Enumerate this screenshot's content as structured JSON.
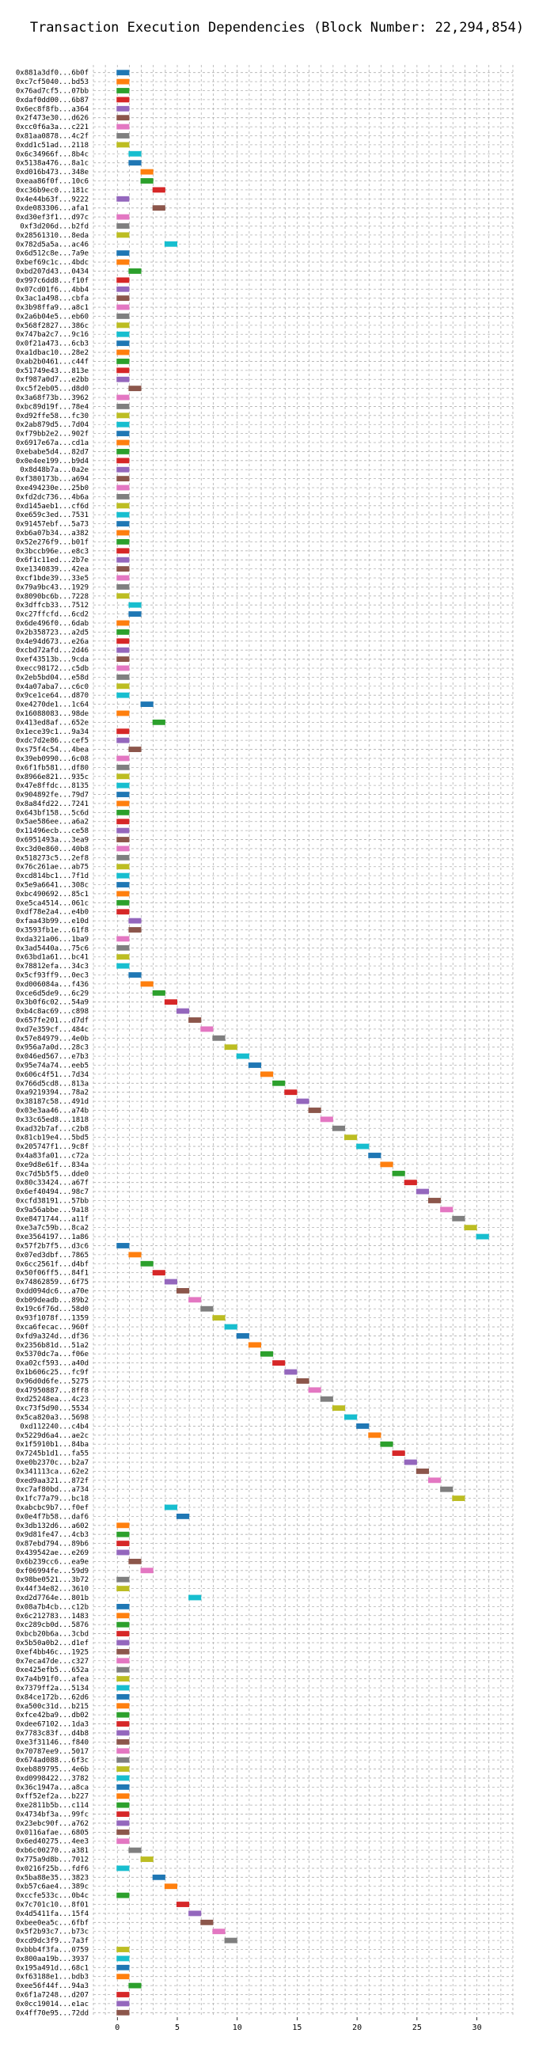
{
  "chart_data": {
    "type": "bar",
    "orientation": "horizontal",
    "title": "Transaction Execution Dependencies (Block Number: 22,294,854)",
    "xlabel": "",
    "ylabel": "",
    "xlim": [
      -2,
      33
    ],
    "xticks": [
      0,
      5,
      10,
      15,
      20,
      25,
      30
    ],
    "grid": true,
    "palette": [
      "#1f77b4",
      "#ff7f0e",
      "#2ca02c",
      "#d62728",
      "#9467bd",
      "#8c564b",
      "#e377c2",
      "#7f7f7f",
      "#bcbd22",
      "#17becf"
    ],
    "transactions": [
      {
        "label": "0x881a3df0...6b0f",
        "start": 0
      },
      {
        "label": "0xc7cf5040...bd53",
        "start": 0
      },
      {
        "label": "0x76ad7cf5...07bb",
        "start": 0
      },
      {
        "label": "0xdaf0dd00...6b87",
        "start": 0
      },
      {
        "label": "0x6ec8f8fb...a364",
        "start": 0
      },
      {
        "label": "0x2f473e30...d626",
        "start": 0
      },
      {
        "label": "0xcc0f6a3a...c221",
        "start": 0
      },
      {
        "label": "0x81aa0878...4c2f",
        "start": 0
      },
      {
        "label": "0xdd1c51ad...2118",
        "start": 0
      },
      {
        "label": "0x6c34966f...8b4c",
        "start": 1
      },
      {
        "label": "0x5138a476...8a1c",
        "start": 1
      },
      {
        "label": "0xd016b473...348e",
        "start": 2
      },
      {
        "label": "0xeaa86f0f...10c6",
        "start": 2
      },
      {
        "label": "0xc36b9ec0...181c",
        "start": 3
      },
      {
        "label": "0x4e44b63f...9222",
        "start": 0
      },
      {
        "label": "0xde083306...afa1",
        "start": 3
      },
      {
        "label": "0xd30ef3f1...d97c",
        "start": 0
      },
      {
        "label": "0xf3d206d...b2fd",
        "start": 0
      },
      {
        "label": "0x28561310...8eda",
        "start": 0
      },
      {
        "label": "0x782d5a5a...ac46",
        "start": 4
      },
      {
        "label": "0x6d512c8e...7a9e",
        "start": 0
      },
      {
        "label": "0xbef69c1c...4bdc",
        "start": 0
      },
      {
        "label": "0xbd207d43...0434",
        "start": 1
      },
      {
        "label": "0x997c6dd8...f10f",
        "start": 0
      },
      {
        "label": "0x07cd01f6...4bb4",
        "start": 0
      },
      {
        "label": "0x3ac1a498...cbfa",
        "start": 0
      },
      {
        "label": "0x3b98ffa9...a8c1",
        "start": 0
      },
      {
        "label": "0x2a6b04e5...eb60",
        "start": 0
      },
      {
        "label": "0x568f2827...386c",
        "start": 0
      },
      {
        "label": "0x747ba2c7...9c16",
        "start": 0
      },
      {
        "label": "0x0f21a473...6cb3",
        "start": 0
      },
      {
        "label": "0xa1dbac10...28e2",
        "start": 0
      },
      {
        "label": "0xab2b0461...c44f",
        "start": 0
      },
      {
        "label": "0x51749e43...813e",
        "start": 0
      },
      {
        "label": "0xf987a0d7...e2bb",
        "start": 0
      },
      {
        "label": "0xc5f2eb05...d8d0",
        "start": 1
      },
      {
        "label": "0x3a68f73b...3962",
        "start": 0
      },
      {
        "label": "0xbc89d19f...78e4",
        "start": 0
      },
      {
        "label": "0xd92ffe58...fc30",
        "start": 0
      },
      {
        "label": "0x2ab879d5...7d04",
        "start": 0
      },
      {
        "label": "0xf79bb2e2...902f",
        "start": 0
      },
      {
        "label": "0x6917e67a...cd1a",
        "start": 0
      },
      {
        "label": "0xebabe5d4...82d7",
        "start": 0
      },
      {
        "label": "0x0e4ee199...b9d4",
        "start": 0
      },
      {
        "label": "0x8d48b7a...0a2e",
        "start": 0
      },
      {
        "label": "0xf380173b...a694",
        "start": 0
      },
      {
        "label": "0xe494230e...25b0",
        "start": 0
      },
      {
        "label": "0xfd2dc736...4b6a",
        "start": 0
      },
      {
        "label": "0xd145aeb1...cf6d",
        "start": 0
      },
      {
        "label": "0xe659c3ed...7531",
        "start": 0
      },
      {
        "label": "0x91457ebf...5a73",
        "start": 0
      },
      {
        "label": "0xb6a07b34...a382",
        "start": 0
      },
      {
        "label": "0x52e276f9...b01f",
        "start": 0
      },
      {
        "label": "0x3bccb96e...e8c3",
        "start": 0
      },
      {
        "label": "0x6f1c11ed...2b7e",
        "start": 0
      },
      {
        "label": "0xe1340839...42ea",
        "start": 0
      },
      {
        "label": "0xcf1bde39...33e5",
        "start": 0
      },
      {
        "label": "0x79a9bc43...1929",
        "start": 0
      },
      {
        "label": "0x8090bc6b...7228",
        "start": 0
      },
      {
        "label": "0x3dffcb33...7512",
        "start": 1
      },
      {
        "label": "0xc27ffcfd...6cd2",
        "start": 1
      },
      {
        "label": "0x6de496f0...6dab",
        "start": 0
      },
      {
        "label": "0x2b358723...a2d5",
        "start": 0
      },
      {
        "label": "0x4e94d673...e26a",
        "start": 0
      },
      {
        "label": "0xcbd72afd...2d46",
        "start": 0
      },
      {
        "label": "0xef43513b...9cda",
        "start": 0
      },
      {
        "label": "0xecc98172...c5db",
        "start": 0
      },
      {
        "label": "0x2eb5bd04...e58d",
        "start": 0
      },
      {
        "label": "0x4a07aba7...c6c0",
        "start": 0
      },
      {
        "label": "0x9ce1ce64...d870",
        "start": 0
      },
      {
        "label": "0xe4270de1...1c64",
        "start": 2
      },
      {
        "label": "0x16088083...98de",
        "start": 0
      },
      {
        "label": "0x413ed8af...652e",
        "start": 3
      },
      {
        "label": "0x1ece39c1...9a34",
        "start": 0
      },
      {
        "label": "0xdc7d2e86...cef5",
        "start": 0
      },
      {
        "label": "0xs75f4c54...4bea",
        "start": 1
      },
      {
        "label": "0x39eb0990...6c08",
        "start": 0
      },
      {
        "label": "0x6f1fb581...df80",
        "start": 0
      },
      {
        "label": "0x8966e821...935c",
        "start": 0
      },
      {
        "label": "0x47e8ffdc...8135",
        "start": 0
      },
      {
        "label": "0x904892fe...79d7",
        "start": 0
      },
      {
        "label": "0x8a84fd22...7241",
        "start": 0
      },
      {
        "label": "0x643bf158...5c6d",
        "start": 0
      },
      {
        "label": "0x5ae586ee...a6a2",
        "start": 0
      },
      {
        "label": "0x11496ecb...ce58",
        "start": 0
      },
      {
        "label": "0x6951493a...3ea9",
        "start": 0
      },
      {
        "label": "0xc3d0e860...40b8",
        "start": 0
      },
      {
        "label": "0x518273c5...2ef8",
        "start": 0
      },
      {
        "label": "0x76c261ae...ab75",
        "start": 0
      },
      {
        "label": "0xcd814bc1...7f1d",
        "start": 0
      },
      {
        "label": "0x5e9a6641...308c",
        "start": 0
      },
      {
        "label": "0xbc490692...85c1",
        "start": 0
      },
      {
        "label": "0xe5ca4514...061c",
        "start": 0
      },
      {
        "label": "0xdf78e2a4...e4b0",
        "start": 0
      },
      {
        "label": "0xfaa43b99...e10d",
        "start": 1
      },
      {
        "label": "0x3593fb1e...61f8",
        "start": 1
      },
      {
        "label": "0xda321a06...1ba9",
        "start": 0
      },
      {
        "label": "0x3ad5440a...75c6",
        "start": 0
      },
      {
        "label": "0x63bd1a61...bc41",
        "start": 0
      },
      {
        "label": "0x78812efa...34c3",
        "start": 0
      },
      {
        "label": "0x5cf93ff9...0ec3",
        "start": 1
      },
      {
        "label": "0xd006084a...f436",
        "start": 2
      },
      {
        "label": "0xce6d5de9...6c29",
        "start": 3
      },
      {
        "label": "0x3b0f6c02...54a9",
        "start": 4
      },
      {
        "label": "0xb4c8ac69...c898",
        "start": 5
      },
      {
        "label": "0x657fe201...d7df",
        "start": 6
      },
      {
        "label": "0xd7e359cf...484c",
        "start": 7
      },
      {
        "label": "0x57e84979...4e0b",
        "start": 8
      },
      {
        "label": "0x956a7a0d...28c3",
        "start": 9
      },
      {
        "label": "0x046ed567...e7b3",
        "start": 10
      },
      {
        "label": "0x95e74a74...eeb5",
        "start": 11
      },
      {
        "label": "0x606c4f51...7d34",
        "start": 12
      },
      {
        "label": "0x766d5cd8...813a",
        "start": 13
      },
      {
        "label": "0xa9219394...78a2",
        "start": 14
      },
      {
        "label": "0x38187c58...491d",
        "start": 15
      },
      {
        "label": "0x03e3aa46...a74b",
        "start": 16
      },
      {
        "label": "0x33c65ed8...1818",
        "start": 17
      },
      {
        "label": "0xad32b7af...c2b8",
        "start": 18
      },
      {
        "label": "0x81cb19e4...5bd5",
        "start": 19
      },
      {
        "label": "0x205747f1...9c8f",
        "start": 20
      },
      {
        "label": "0x4a83fa01...c72a",
        "start": 21
      },
      {
        "label": "0xe9d8e61f...834a",
        "start": 22
      },
      {
        "label": "0xc7d5b5f5...dde0",
        "start": 23
      },
      {
        "label": "0x80c33424...a67f",
        "start": 24
      },
      {
        "label": "0x6ef40494...98c7",
        "start": 25
      },
      {
        "label": "0xcfd38191...57bb",
        "start": 26
      },
      {
        "label": "0x9a56abbe...9a18",
        "start": 27
      },
      {
        "label": "0xe8471744...a11f",
        "start": 28
      },
      {
        "label": "0xe3a7c59b...8ca2",
        "start": 29
      },
      {
        "label": "0xe3564197...1a86",
        "start": 30
      },
      {
        "label": "0x57f2b7f5...d3c6",
        "start": 0
      },
      {
        "label": "0x07ed3dbf...7865",
        "start": 1
      },
      {
        "label": "0x6cc2561f...d4bf",
        "start": 2
      },
      {
        "label": "0x50f06ff5...84f1",
        "start": 3
      },
      {
        "label": "0x74862859...6f75",
        "start": 4
      },
      {
        "label": "0xdd094dc6...a70e",
        "start": 5
      },
      {
        "label": "0xb09deadb...89b2",
        "start": 6
      },
      {
        "label": "0x19c6f76d...58d0",
        "start": 7
      },
      {
        "label": "0x93f1078f...1359",
        "start": 8
      },
      {
        "label": "0xca6fecac...960f",
        "start": 9
      },
      {
        "label": "0xfd9a324d...df36",
        "start": 10
      },
      {
        "label": "0x2356b81d...51a2",
        "start": 11
      },
      {
        "label": "0x5370dc7a...f06e",
        "start": 12
      },
      {
        "label": "0xa02cf593...a40d",
        "start": 13
      },
      {
        "label": "0x1b606c25...fc9f",
        "start": 14
      },
      {
        "label": "0x96d0d6fe...5275",
        "start": 15
      },
      {
        "label": "0x47950887...8ff8",
        "start": 16
      },
      {
        "label": "0xd25248ea...4c23",
        "start": 17
      },
      {
        "label": "0xc73f5d90...5534",
        "start": 18
      },
      {
        "label": "0x5ca820a3...5698",
        "start": 19
      },
      {
        "label": "0xd112240...c4b4",
        "start": 20
      },
      {
        "label": "0x5229d6a4...ae2c",
        "start": 21
      },
      {
        "label": "0x1f5910b1...84ba",
        "start": 22
      },
      {
        "label": "0x7245b1d1...fa55",
        "start": 23
      },
      {
        "label": "0xe0b2370c...b2a7",
        "start": 24
      },
      {
        "label": "0x341113ca...62e2",
        "start": 25
      },
      {
        "label": "0xed9aa321...872f",
        "start": 26
      },
      {
        "label": "0xc7af80bd...a734",
        "start": 27
      },
      {
        "label": "0x1fc77a79...bc18",
        "start": 28
      },
      {
        "label": "0xabcbc9b7...f0ef",
        "start": 4
      },
      {
        "label": "0x0e4f7b58...daf6",
        "start": 5
      },
      {
        "label": "0x3db132d6...a602",
        "start": 0
      },
      {
        "label": "0x9d81fe47...4cb3",
        "start": 0
      },
      {
        "label": "0x87ebd794...89b6",
        "start": 0
      },
      {
        "label": "0x439542ae...e269",
        "start": 0
      },
      {
        "label": "0x6b239cc6...ea9e",
        "start": 1
      },
      {
        "label": "0xf06994fe...59d9",
        "start": 2
      },
      {
        "label": "0x98be0521...3b72",
        "start": 0
      },
      {
        "label": "0x44f34e82...3610",
        "start": 0
      },
      {
        "label": "0xd2d7764e...801b",
        "start": 6
      },
      {
        "label": "0x08a7b4cb...c12b",
        "start": 0
      },
      {
        "label": "0x6c212783...1483",
        "start": 0
      },
      {
        "label": "0xc289cb0d...5876",
        "start": 0
      },
      {
        "label": "0xbcb20b6a...3cbd",
        "start": 0
      },
      {
        "label": "0x5b50a0b2...d1ef",
        "start": 0
      },
      {
        "label": "0xef4bb46c...1925",
        "start": 0
      },
      {
        "label": "0x7eca47de...c327",
        "start": 0
      },
      {
        "label": "0xe425efb5...652a",
        "start": 0
      },
      {
        "label": "0x7a4b91f0...afea",
        "start": 0
      },
      {
        "label": "0x7379ff2a...5134",
        "start": 0
      },
      {
        "label": "0x84ce172b...62d6",
        "start": 0
      },
      {
        "label": "0xa500c31d...b215",
        "start": 0
      },
      {
        "label": "0xfce42ba9...db02",
        "start": 0
      },
      {
        "label": "0xdee67102...1da3",
        "start": 0
      },
      {
        "label": "0x7783c83f...d4b8",
        "start": 0
      },
      {
        "label": "0xe3f31146...f840",
        "start": 0
      },
      {
        "label": "0x70787ee9...5017",
        "start": 0
      },
      {
        "label": "0x674ad088...6f3c",
        "start": 0
      },
      {
        "label": "0xeb889795...4e6b",
        "start": 0
      },
      {
        "label": "0xd0998422...3782",
        "start": 0
      },
      {
        "label": "0x36c1947a...a8ca",
        "start": 0
      },
      {
        "label": "0xff52ef2a...b227",
        "start": 0
      },
      {
        "label": "0xe2811b5b...c114",
        "start": 0
      },
      {
        "label": "0x4734bf3a...99fc",
        "start": 0
      },
      {
        "label": "0x23ebc90f...a762",
        "start": 0
      },
      {
        "label": "0x0116afae...6805",
        "start": 0
      },
      {
        "label": "0x6ed40275...4ee3",
        "start": 0
      },
      {
        "label": "0xb6c00270...a381",
        "start": 1
      },
      {
        "label": "0x775a9d8b...7012",
        "start": 2
      },
      {
        "label": "0x0216f25b...fdf6",
        "start": 0
      },
      {
        "label": "0x5ba88e35...3823",
        "start": 3
      },
      {
        "label": "0xb57c6ae4...389c",
        "start": 4
      },
      {
        "label": "0xccfe533c...0b4c",
        "start": 0
      },
      {
        "label": "0x7c701c10...8f01",
        "start": 5
      },
      {
        "label": "0x4d5411fa...15f4",
        "start": 6
      },
      {
        "label": "0xbee0ea5c...6fbf",
        "start": 7
      },
      {
        "label": "0x5f2b93c7...b73c",
        "start": 8
      },
      {
        "label": "0xcd9dc3f9...7a3f",
        "start": 9
      },
      {
        "label": "0xbbb4f3fa...0759",
        "start": 0
      },
      {
        "label": "0x800aa19b...3937",
        "start": 0
      },
      {
        "label": "0x195a491d...68c1",
        "start": 0
      },
      {
        "label": "0xf63188e1...bdb3",
        "start": 0
      },
      {
        "label": "0xee56f44f...94a3",
        "start": 1
      },
      {
        "label": "0x6f1a7248...d207",
        "start": 0
      },
      {
        "label": "0x0cc19014...e1ac",
        "start": 0
      },
      {
        "label": "0x4ff70e95...72dd",
        "start": 0
      }
    ]
  }
}
